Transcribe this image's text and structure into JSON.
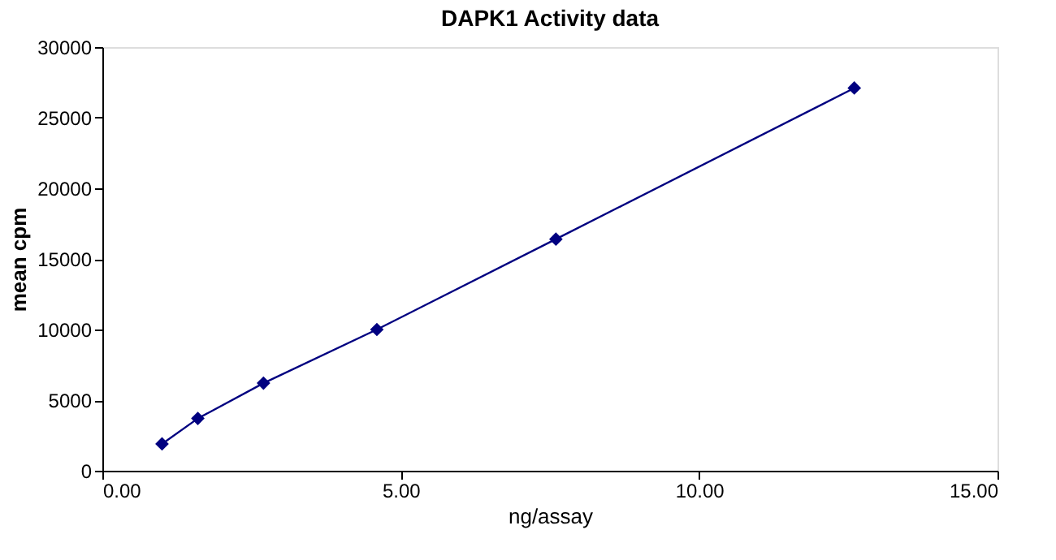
{
  "chart_data": {
    "type": "line",
    "title": "DAPK1 Activity data",
    "xlabel": "ng/assay",
    "ylabel": "mean cpm",
    "x": [
      1.0,
      1.6,
      2.7,
      4.6,
      7.6,
      12.6
    ],
    "series": [
      {
        "color": "#000080",
        "values": [
          1900,
          3700,
          6200,
          10000,
          16400,
          27100
        ]
      }
    ],
    "xlim": [
      0,
      15
    ],
    "xticks": [
      {
        "value": 0,
        "label": "0.00"
      },
      {
        "value": 5,
        "label": "5.00"
      },
      {
        "value": 10,
        "label": "10.00"
      },
      {
        "value": 15,
        "label": "15.00"
      }
    ],
    "ylim": [
      0,
      30000
    ],
    "yticks": [
      0,
      5000,
      10000,
      15000,
      20000,
      25000,
      30000
    ],
    "marker": "diamond",
    "line_style": "solid",
    "grid": false
  }
}
